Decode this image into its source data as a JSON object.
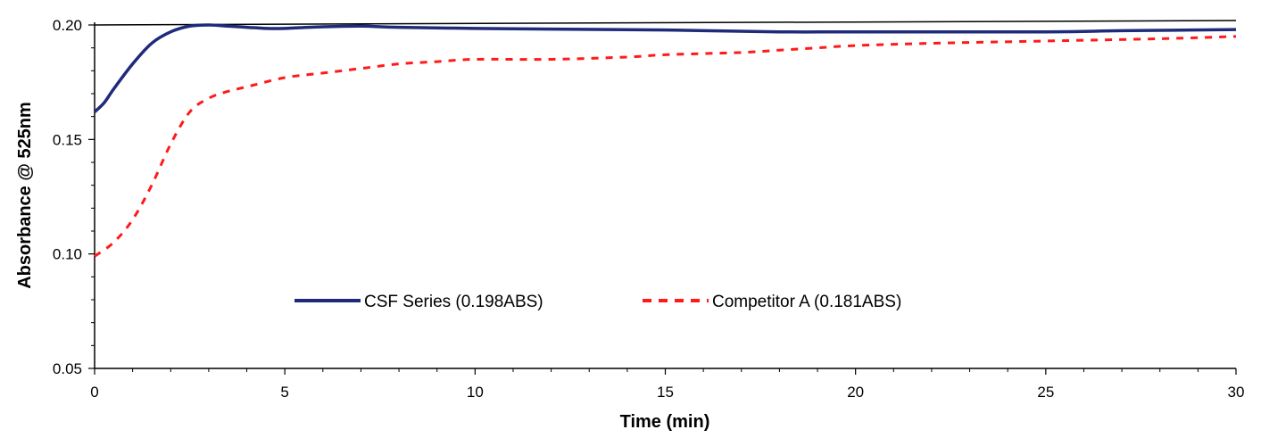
{
  "chart_data": {
    "type": "line",
    "title": "",
    "xlabel": "Time (min)",
    "ylabel": "Absorbance @ 525nm",
    "xlim": [
      0,
      30
    ],
    "ylim": [
      0.05,
      0.2
    ],
    "x_ticks": [
      0,
      5,
      10,
      15,
      20,
      25,
      30
    ],
    "x_tick_labels": [
      "0",
      "5",
      "10",
      "15",
      "20",
      "25",
      "30"
    ],
    "x_minor_step": 1,
    "y_ticks": [
      0.05,
      0.1,
      0.15,
      0.2
    ],
    "y_tick_labels": [
      "0.05",
      "0.10",
      "0.15",
      "0.20"
    ],
    "grid": false,
    "legend_position": "center",
    "reference_line": {
      "color": "#000000",
      "points": [
        [
          0,
          0.2
        ],
        [
          30,
          0.2
        ]
      ]
    },
    "series": [
      {
        "name": "CSF Series (0.198ABS)",
        "color": "#1f2a7a",
        "style": "solid",
        "x": [
          0,
          0.25,
          0.5,
          1,
          1.5,
          2,
          2.5,
          3,
          3.5,
          4,
          4.5,
          5,
          6,
          7,
          8,
          10,
          12,
          15,
          18,
          20,
          25,
          27,
          30
        ],
        "y": [
          0.162,
          0.166,
          0.172,
          0.183,
          0.192,
          0.197,
          0.1995,
          0.2,
          0.1995,
          0.199,
          0.1985,
          0.1985,
          0.1992,
          0.1995,
          0.199,
          0.1985,
          0.1982,
          0.1978,
          0.197,
          0.197,
          0.197,
          0.1975,
          0.198
        ]
      },
      {
        "name": "Competitor A (0.181ABS)",
        "color": "#ff1a1a",
        "style": "dashed",
        "x": [
          0,
          0.5,
          1,
          1.5,
          2,
          2.5,
          3,
          3.5,
          4,
          5,
          6,
          7,
          8,
          9,
          10,
          12,
          14,
          15,
          17,
          18,
          19,
          20,
          22,
          25,
          28,
          30
        ],
        "y": [
          0.099,
          0.105,
          0.115,
          0.13,
          0.148,
          0.162,
          0.168,
          0.171,
          0.173,
          0.177,
          0.179,
          0.181,
          0.183,
          0.184,
          0.185,
          0.185,
          0.186,
          0.187,
          0.188,
          0.189,
          0.19,
          0.191,
          0.192,
          0.193,
          0.194,
          0.195
        ]
      }
    ]
  }
}
